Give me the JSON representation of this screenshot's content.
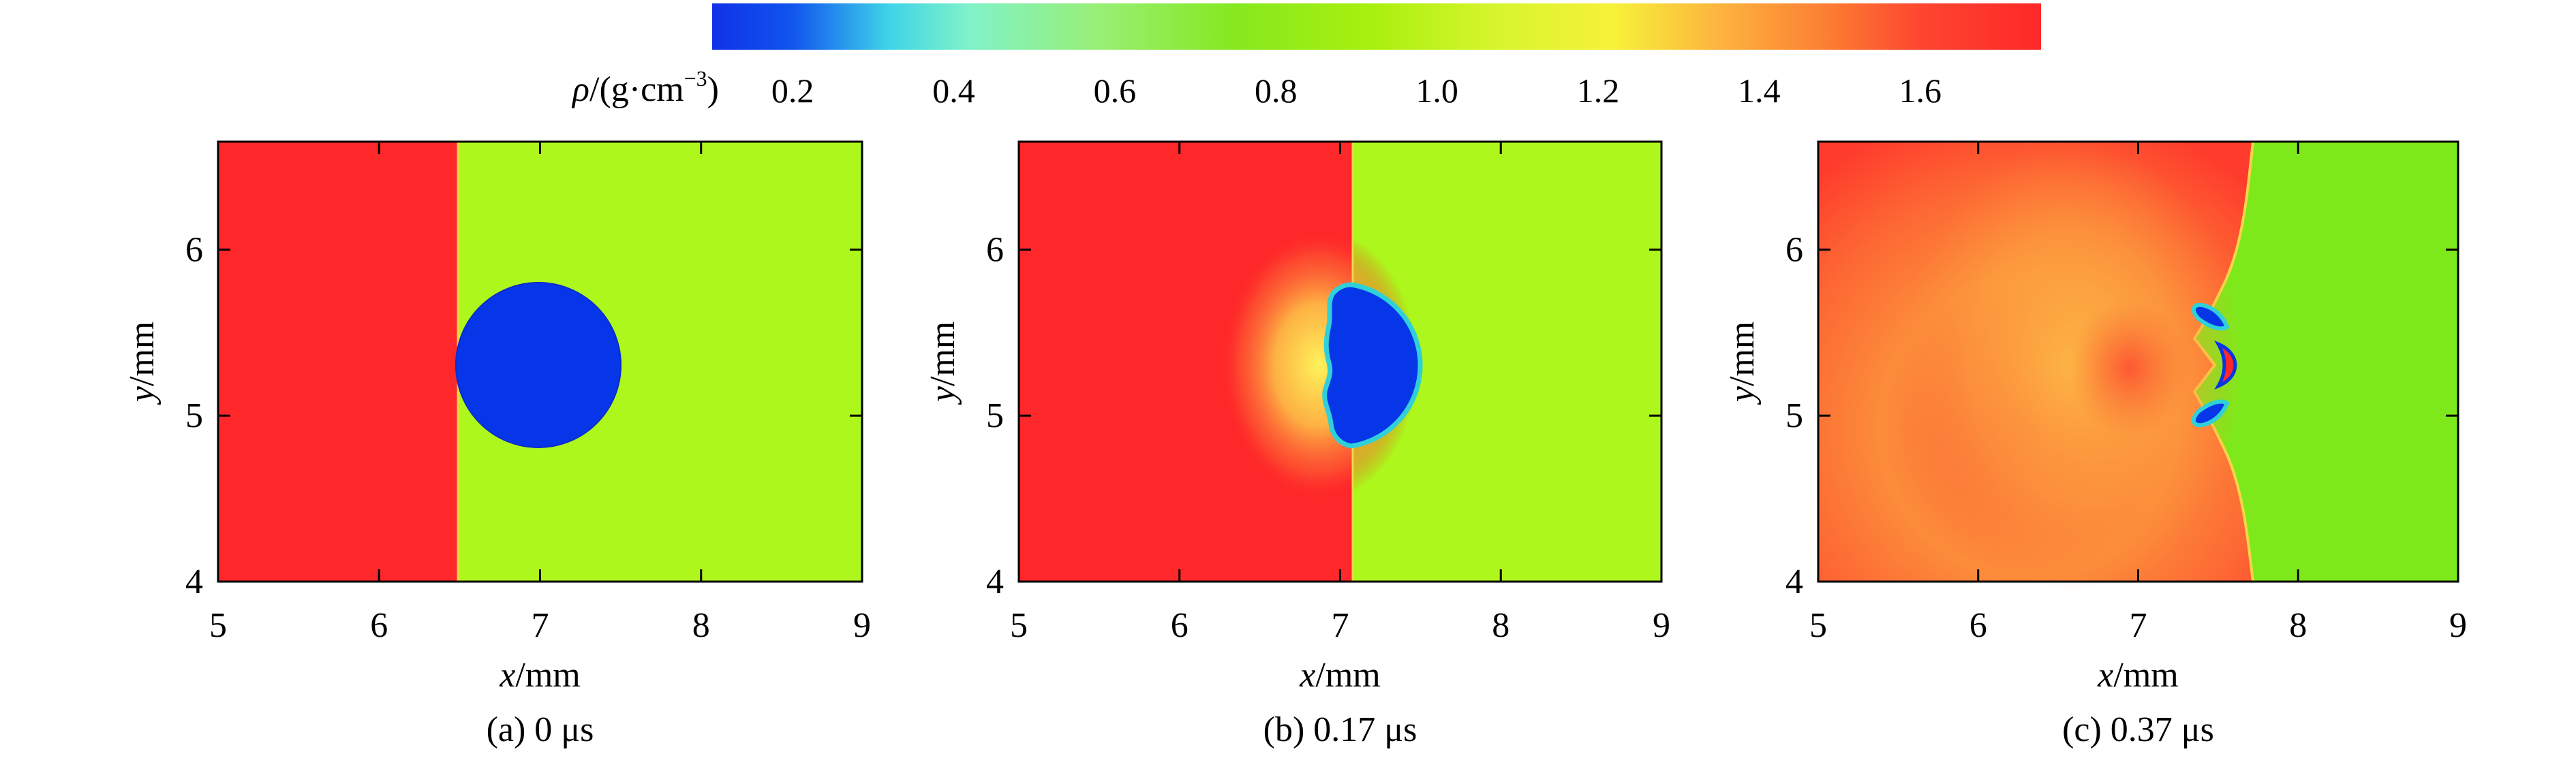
{
  "colorbar": {
    "label_symbol": "ρ",
    "label_units": "/(g·cm",
    "label_exponent": "−3",
    "label_close": ")",
    "ticks": [
      "0.2",
      "0.4",
      "0.6",
      "0.8",
      "1.0",
      "1.2",
      "1.4",
      "1.6"
    ],
    "tick_values": [
      0.2,
      0.4,
      0.6,
      0.8,
      1.0,
      1.2,
      1.4,
      1.6
    ],
    "range": [
      0.1,
      1.75
    ],
    "stops": [
      {
        "value": 0.1,
        "color": "#1032e8"
      },
      {
        "value": 0.2,
        "color": "#1055ee"
      },
      {
        "value": 0.32,
        "color": "#3fd4e8"
      },
      {
        "value": 0.42,
        "color": "#80f2c8"
      },
      {
        "value": 0.58,
        "color": "#98ef75"
      },
      {
        "value": 0.75,
        "color": "#86e81f"
      },
      {
        "value": 0.92,
        "color": "#a9f00e"
      },
      {
        "value": 1.08,
        "color": "#d9f52e"
      },
      {
        "value": 1.22,
        "color": "#f7f13a"
      },
      {
        "value": 1.35,
        "color": "#fdb43e"
      },
      {
        "value": 1.48,
        "color": "#fc8033"
      },
      {
        "value": 1.6,
        "color": "#fd4630"
      },
      {
        "value": 1.75,
        "color": "#fe2828"
      }
    ]
  },
  "chart_data": [
    {
      "type": "heatmap",
      "id": "a",
      "caption": "(a) 0 μs",
      "xlabel_var": "x",
      "xlabel_unit": "/mm",
      "ylabel_var": "y",
      "ylabel_unit": "/mm",
      "xlim": [
        5,
        9
      ],
      "ylim": [
        4,
        6.65
      ],
      "xticks": [
        5,
        6,
        7,
        8,
        9
      ],
      "yticks": [
        4,
        5,
        6
      ],
      "background_colors": {
        "left": "#fe2729",
        "right": "#adf71c",
        "bubble": "#0735e8"
      },
      "shock_front_x": 6.49,
      "bubble": {
        "cx": 7.01,
        "cy": 5.33,
        "r": 0.49
      }
    },
    {
      "type": "heatmap",
      "id": "b",
      "caption": "(b) 0.17 μs",
      "xlabel_var": "x",
      "xlabel_unit": "/mm",
      "ylabel_var": "y",
      "ylabel_unit": "/mm",
      "xlim": [
        5,
        9
      ],
      "ylim": [
        4,
        6.65
      ],
      "xticks": [
        5,
        6,
        7,
        8,
        9
      ],
      "yticks": [
        4,
        5,
        6
      ],
      "background_colors": {
        "left": "#fe2729",
        "right": "#adf71c",
        "bubble": "#0735e8",
        "compressed": "#fdb845"
      },
      "shock_front_x": 7.08,
      "bubble": {
        "cx": 7.01,
        "cy": 5.33,
        "r": 0.49
      }
    },
    {
      "type": "heatmap",
      "id": "c",
      "caption": "(c) 0.37 μs",
      "xlabel_var": "x",
      "xlabel_unit": "/mm",
      "ylabel_var": "y",
      "ylabel_unit": "/mm",
      "xlim": [
        5,
        9
      ],
      "ylim": [
        4,
        6.65
      ],
      "xticks": [
        5,
        6,
        7,
        8,
        9
      ],
      "yticks": [
        4,
        5,
        6
      ],
      "background_colors": {
        "left": "#fd4530",
        "right": "#7ee91a",
        "bubble": "#0735e8",
        "compressed": "#fdb845",
        "jet": "#fe2729"
      },
      "shock_front_x": 7.75,
      "bubble": {
        "cx": 7.45,
        "cy": 5.33,
        "r": 0.2
      }
    }
  ]
}
